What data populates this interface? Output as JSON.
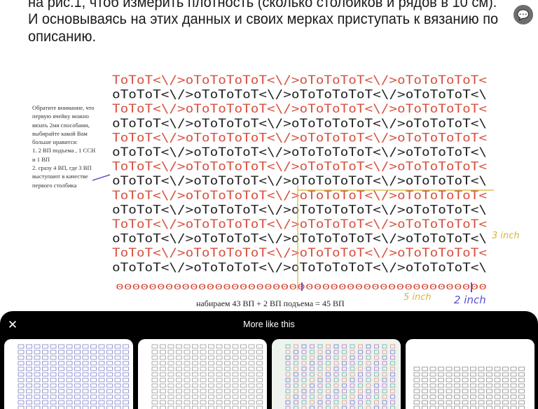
{
  "article": {
    "lines": [
      "на рис.1, чтоб измерить плотность (сколько столбиков и рядов в 10 см).",
      "И основываясь на этих данных и своих мерках приступать к вязанию по",
      "описанию."
    ]
  },
  "chart": {
    "note": "Обратите внимание, что\nпервую ячейку можно\nвязать 2мя способами,\nвыбирайте какой Вам\nбольше нравится:\n1. 2 ВП подъема , 1 ССН\nи 1 ВП\n2. сразу 4 ВП, где 3 ВП\nвыступают в качестве\nпервого столбика",
    "caption": "набираем 43 ВП + 2 ВП подъема = 45 ВП",
    "annotations": {
      "height": "3 inch",
      "width": "5 inch",
      "edge": "2 inch"
    },
    "colors": {
      "red_rows": "#d9503f",
      "black_rows": "#222222",
      "guide": "#d8b53a",
      "marker": "#6a4fc9"
    }
  },
  "sheet": {
    "title": "More like this",
    "close_icon": "close-icon",
    "thumbnails": [
      "crochet-chart-blue",
      "crochet-chart-grey",
      "crochet-chart-colorful",
      "crochet-chart-arrows"
    ]
  }
}
